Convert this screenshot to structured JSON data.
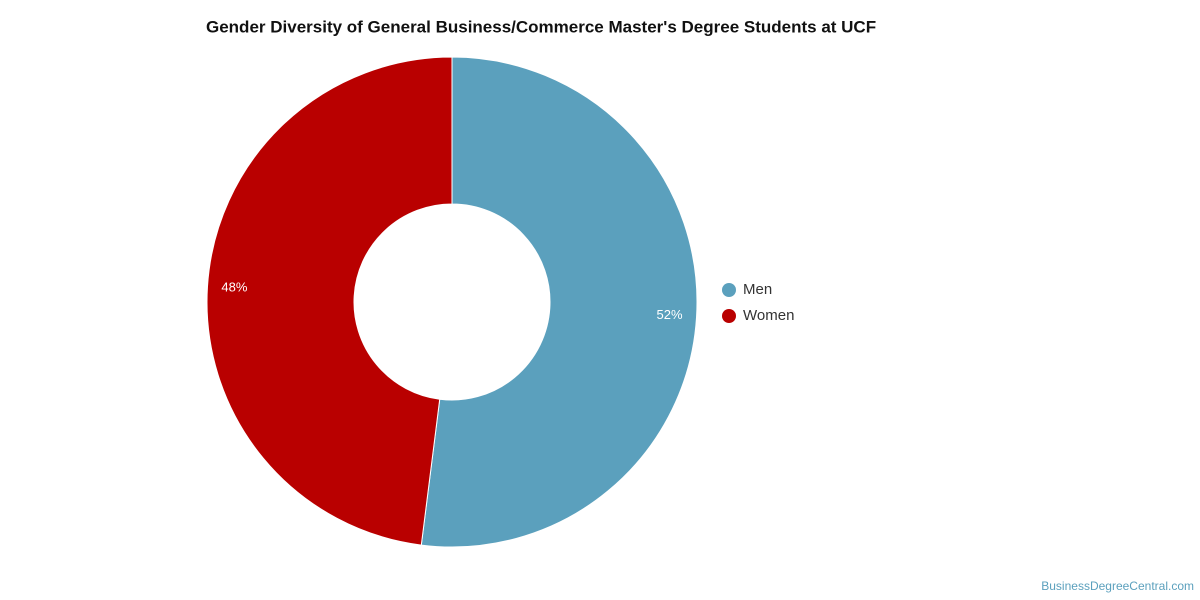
{
  "chart_data": {
    "type": "pie",
    "title": "Gender Diversity of General Business/Commerce Master's Degree Students at UCF",
    "categories": [
      "Men",
      "Women"
    ],
    "values": [
      52,
      48
    ],
    "value_labels": [
      "52%",
      "48%"
    ],
    "colors": [
      "#5ba0bd",
      "#b90000"
    ],
    "donut": true,
    "legend": "right",
    "credit": "BusinessDegreeCentral.com"
  }
}
